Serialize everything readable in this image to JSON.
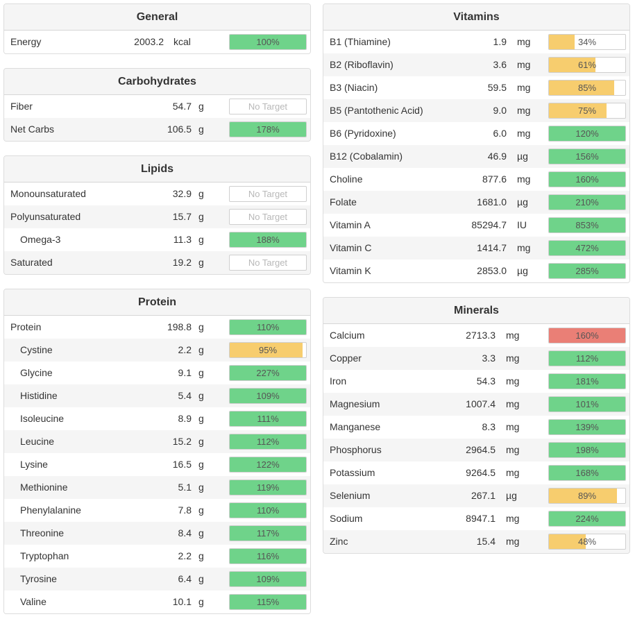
{
  "colors": {
    "green": "#6fd38a",
    "yellow": "#f7cd6e",
    "red": "#ea7f76",
    "header_bg": "#f5f5f5",
    "row_alt": "#f5f5f5"
  },
  "left_panels": [
    {
      "key": "general",
      "title": "General",
      "rows": [
        {
          "name": "Energy",
          "amount": "2003.2",
          "unit": "kcal",
          "percent": "100%",
          "fill": 1.0,
          "color": "green"
        }
      ]
    },
    {
      "key": "carbs",
      "title": "Carbohydrates",
      "rows": [
        {
          "name": "Fiber",
          "amount": "54.7",
          "unit": "g",
          "percent": "No Target",
          "fill": 0,
          "color": "none"
        },
        {
          "name": "Net Carbs",
          "amount": "106.5",
          "unit": "g",
          "percent": "178%",
          "fill": 1.0,
          "color": "green"
        }
      ]
    },
    {
      "key": "lipids",
      "title": "Lipids",
      "rows": [
        {
          "name": "Monounsaturated",
          "amount": "32.9",
          "unit": "g",
          "percent": "No Target",
          "fill": 0,
          "color": "none"
        },
        {
          "name": "Polyunsaturated",
          "amount": "15.7",
          "unit": "g",
          "percent": "No Target",
          "fill": 0,
          "color": "none"
        },
        {
          "name": "Omega-3",
          "amount": "11.3",
          "unit": "g",
          "percent": "188%",
          "fill": 1.0,
          "color": "green",
          "indent": true
        },
        {
          "name": "Saturated",
          "amount": "19.2",
          "unit": "g",
          "percent": "No Target",
          "fill": 0,
          "color": "none"
        }
      ]
    },
    {
      "key": "protein",
      "title": "Protein",
      "rows": [
        {
          "name": "Protein",
          "amount": "198.8",
          "unit": "g",
          "percent": "110%",
          "fill": 1.0,
          "color": "green"
        },
        {
          "name": "Cystine",
          "amount": "2.2",
          "unit": "g",
          "percent": "95%",
          "fill": 0.95,
          "color": "yellow",
          "indent": true
        },
        {
          "name": "Glycine",
          "amount": "9.1",
          "unit": "g",
          "percent": "227%",
          "fill": 1.0,
          "color": "green",
          "indent": true
        },
        {
          "name": "Histidine",
          "amount": "5.4",
          "unit": "g",
          "percent": "109%",
          "fill": 1.0,
          "color": "green",
          "indent": true
        },
        {
          "name": "Isoleucine",
          "amount": "8.9",
          "unit": "g",
          "percent": "111%",
          "fill": 1.0,
          "color": "green",
          "indent": true
        },
        {
          "name": "Leucine",
          "amount": "15.2",
          "unit": "g",
          "percent": "112%",
          "fill": 1.0,
          "color": "green",
          "indent": true
        },
        {
          "name": "Lysine",
          "amount": "16.5",
          "unit": "g",
          "percent": "122%",
          "fill": 1.0,
          "color": "green",
          "indent": true
        },
        {
          "name": "Methionine",
          "amount": "5.1",
          "unit": "g",
          "percent": "119%",
          "fill": 1.0,
          "color": "green",
          "indent": true
        },
        {
          "name": "Phenylalanine",
          "amount": "7.8",
          "unit": "g",
          "percent": "110%",
          "fill": 1.0,
          "color": "green",
          "indent": true
        },
        {
          "name": "Threonine",
          "amount": "8.4",
          "unit": "g",
          "percent": "117%",
          "fill": 1.0,
          "color": "green",
          "indent": true
        },
        {
          "name": "Tryptophan",
          "amount": "2.2",
          "unit": "g",
          "percent": "116%",
          "fill": 1.0,
          "color": "green",
          "indent": true
        },
        {
          "name": "Tyrosine",
          "amount": "6.4",
          "unit": "g",
          "percent": "109%",
          "fill": 1.0,
          "color": "green",
          "indent": true
        },
        {
          "name": "Valine",
          "amount": "10.1",
          "unit": "g",
          "percent": "115%",
          "fill": 1.0,
          "color": "green",
          "indent": true
        }
      ]
    }
  ],
  "right_panels": [
    {
      "key": "vitamins",
      "title": "Vitamins",
      "rows": [
        {
          "name": "B1 (Thiamine)",
          "amount": "1.9",
          "unit": "mg",
          "percent": "34%",
          "fill": 0.34,
          "color": "yellow"
        },
        {
          "name": "B2 (Riboflavin)",
          "amount": "3.6",
          "unit": "mg",
          "percent": "61%",
          "fill": 0.61,
          "color": "yellow"
        },
        {
          "name": "B3 (Niacin)",
          "amount": "59.5",
          "unit": "mg",
          "percent": "85%",
          "fill": 0.85,
          "color": "yellow"
        },
        {
          "name": "B5 (Pantothenic Acid)",
          "amount": "9.0",
          "unit": "mg",
          "percent": "75%",
          "fill": 0.75,
          "color": "yellow"
        },
        {
          "name": "B6 (Pyridoxine)",
          "amount": "6.0",
          "unit": "mg",
          "percent": "120%",
          "fill": 1.0,
          "color": "green"
        },
        {
          "name": "B12 (Cobalamin)",
          "amount": "46.9",
          "unit": "µg",
          "percent": "156%",
          "fill": 1.0,
          "color": "green"
        },
        {
          "name": "Choline",
          "amount": "877.6",
          "unit": "mg",
          "percent": "160%",
          "fill": 1.0,
          "color": "green"
        },
        {
          "name": "Folate",
          "amount": "1681.0",
          "unit": "µg",
          "percent": "210%",
          "fill": 1.0,
          "color": "green"
        },
        {
          "name": "Vitamin A",
          "amount": "85294.7",
          "unit": "IU",
          "percent": "853%",
          "fill": 1.0,
          "color": "green"
        },
        {
          "name": "Vitamin C",
          "amount": "1414.7",
          "unit": "mg",
          "percent": "472%",
          "fill": 1.0,
          "color": "green"
        },
        {
          "name": "Vitamin K",
          "amount": "2853.0",
          "unit": "µg",
          "percent": "285%",
          "fill": 1.0,
          "color": "green"
        }
      ]
    },
    {
      "key": "minerals",
      "title": "Minerals",
      "rows": [
        {
          "name": "Calcium",
          "amount": "2713.3",
          "unit": "mg",
          "percent": "160%",
          "fill": 1.0,
          "color": "red"
        },
        {
          "name": "Copper",
          "amount": "3.3",
          "unit": "mg",
          "percent": "112%",
          "fill": 1.0,
          "color": "green"
        },
        {
          "name": "Iron",
          "amount": "54.3",
          "unit": "mg",
          "percent": "181%",
          "fill": 1.0,
          "color": "green"
        },
        {
          "name": "Magnesium",
          "amount": "1007.4",
          "unit": "mg",
          "percent": "101%",
          "fill": 1.0,
          "color": "green"
        },
        {
          "name": "Manganese",
          "amount": "8.3",
          "unit": "mg",
          "percent": "139%",
          "fill": 1.0,
          "color": "green"
        },
        {
          "name": "Phosphorus",
          "amount": "2964.5",
          "unit": "mg",
          "percent": "198%",
          "fill": 1.0,
          "color": "green"
        },
        {
          "name": "Potassium",
          "amount": "9264.5",
          "unit": "mg",
          "percent": "168%",
          "fill": 1.0,
          "color": "green"
        },
        {
          "name": "Selenium",
          "amount": "267.1",
          "unit": "µg",
          "percent": "89%",
          "fill": 0.89,
          "color": "yellow"
        },
        {
          "name": "Sodium",
          "amount": "8947.1",
          "unit": "mg",
          "percent": "224%",
          "fill": 1.0,
          "color": "green"
        },
        {
          "name": "Zinc",
          "amount": "15.4",
          "unit": "mg",
          "percent": "48%",
          "fill": 0.48,
          "color": "yellow"
        }
      ]
    }
  ]
}
